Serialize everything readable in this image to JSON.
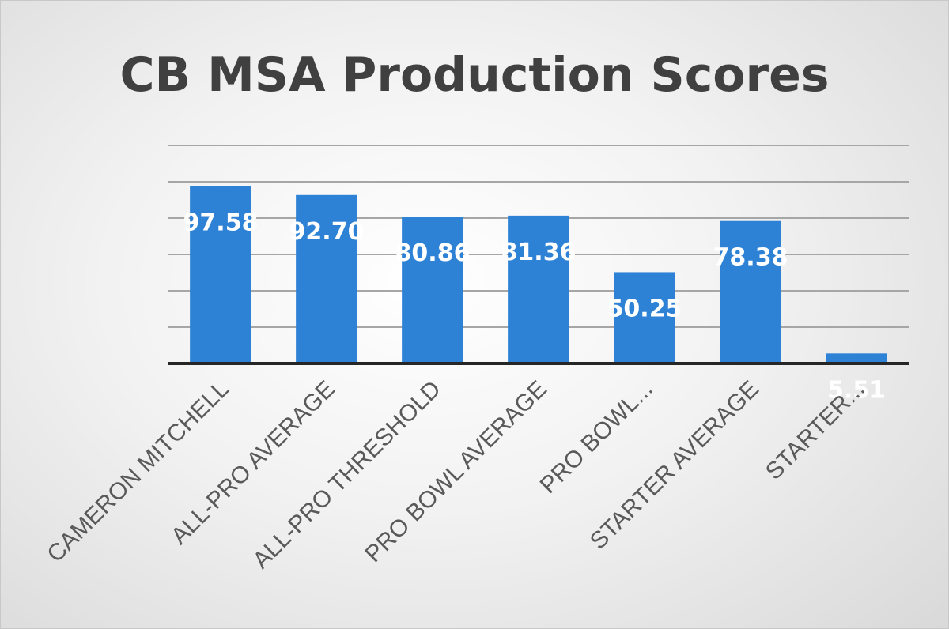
{
  "chart_data": {
    "type": "bar",
    "title": "CB MSA Production Scores",
    "xlabel": "",
    "ylabel": "",
    "categories": [
      "CAMERON MITCHELL",
      "ALL-PRO AVERAGE",
      "ALL-PRO THRESHOLD",
      "PRO BOWL AVERAGE",
      "PRO BOWL...",
      "STARTER AVERAGE",
      "STARTER..."
    ],
    "values": [
      97.58,
      92.7,
      80.86,
      81.36,
      50.25,
      78.38,
      5.51
    ],
    "value_labels": [
      "97.58",
      "92.70",
      "80.86",
      "81.36",
      "50.25",
      "78.38",
      "5.51"
    ],
    "ylim": [
      0,
      120
    ],
    "grid": true,
    "legend": "none",
    "colors": {
      "bar": "#2e82d6",
      "data_label": "#ffffff",
      "title": "#404040",
      "category_label": "#595959"
    }
  }
}
